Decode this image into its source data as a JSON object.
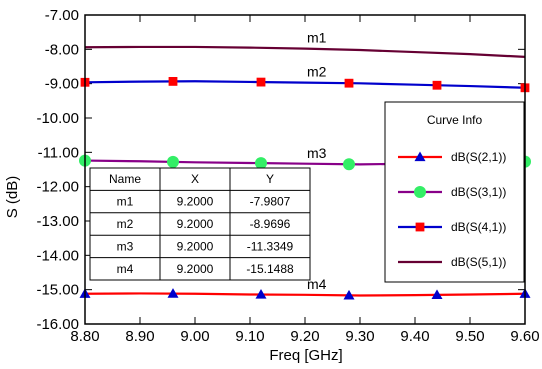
{
  "chart_data": {
    "type": "line",
    "xlabel": "Freq [GHz]",
    "ylabel": "S (dB)",
    "xlim": [
      8.8,
      9.6
    ],
    "ylim": [
      -16.0,
      -7.0
    ],
    "grid": false,
    "x_ticks": [
      8.8,
      8.9,
      9.0,
      9.1,
      9.2,
      9.3,
      9.4,
      9.5,
      9.6
    ],
    "x_tick_labels": [
      "8.80",
      "8.90",
      "9.00",
      "9.10",
      "9.20",
      "9.30",
      "9.40",
      "9.50",
      "9.60"
    ],
    "y_ticks": [
      -7,
      -8,
      -9,
      -10,
      -11,
      -12,
      -13,
      -14,
      -15,
      -16
    ],
    "y_tick_labels": [
      "-7.00",
      "-8.00",
      "-9.00",
      "-10.00",
      "-11.00",
      "-12.00",
      "-13.00",
      "-14.00",
      "-15.00",
      "-16.00"
    ],
    "x": [
      8.8,
      8.9,
      9.0,
      9.1,
      9.2,
      9.3,
      9.4,
      9.5,
      9.6
    ],
    "series": [
      {
        "name": "dB(S(2,1))",
        "color": "#ff0000",
        "marker": "triangle",
        "marker_color": "#0000cc",
        "values": [
          -15.12,
          -15.11,
          -15.12,
          -15.14,
          -15.15,
          -15.17,
          -15.16,
          -15.14,
          -15.12
        ],
        "marker_x": [
          8.8,
          8.96,
          9.12,
          9.28,
          9.44,
          9.6
        ]
      },
      {
        "name": "dB(S(3,1))",
        "color": "#880088",
        "marker": "circle",
        "marker_color": "#33ee66",
        "values": [
          -11.24,
          -11.26,
          -11.29,
          -11.31,
          -11.33,
          -11.35,
          -11.33,
          -11.3,
          -11.27
        ],
        "marker_x": [
          8.8,
          8.96,
          9.12,
          9.28,
          9.44,
          9.6
        ]
      },
      {
        "name": "dB(S(4,1))",
        "color": "#0000cc",
        "marker": "square",
        "marker_color": "#ff0000",
        "values": [
          -8.96,
          -8.94,
          -8.93,
          -8.95,
          -8.97,
          -8.99,
          -9.03,
          -9.07,
          -9.12
        ],
        "marker_x": [
          8.8,
          8.96,
          9.12,
          9.28,
          9.44,
          9.6
        ]
      },
      {
        "name": "dB(S(5,1))",
        "color": "#660033",
        "marker": "none",
        "marker_color": "",
        "values": [
          -7.94,
          -7.93,
          -7.93,
          -7.95,
          -7.98,
          -8.02,
          -8.08,
          -8.14,
          -8.22
        ],
        "marker_x": []
      }
    ],
    "markers": [
      {
        "label": "m1",
        "x": 9.2,
        "y": -7.9807
      },
      {
        "label": "m2",
        "x": 9.2,
        "y": -8.9696
      },
      {
        "label": "m3",
        "x": 9.2,
        "y": -11.3349
      },
      {
        "label": "m4",
        "x": 9.2,
        "y": -15.1488
      }
    ],
    "marker_table": {
      "headers": [
        "Name",
        "X",
        "Y"
      ],
      "rows": [
        [
          "m1",
          "9.2000",
          "-7.9807"
        ],
        [
          "m2",
          "9.2000",
          "-8.9696"
        ],
        [
          "m3",
          "9.2000",
          "-11.3349"
        ],
        [
          "m4",
          "9.2000",
          "-15.1488"
        ]
      ]
    },
    "legend": {
      "title": "Curve Info",
      "placement": "right"
    }
  }
}
